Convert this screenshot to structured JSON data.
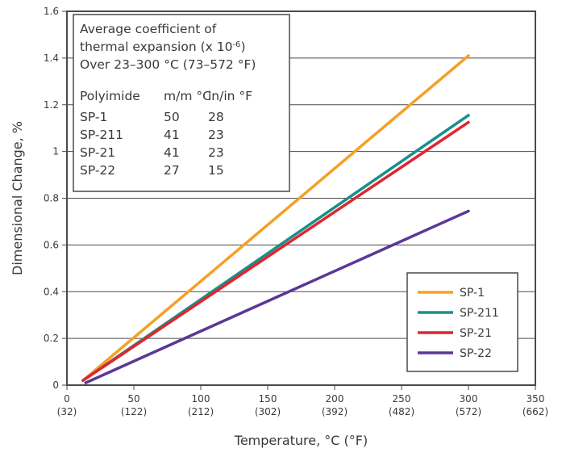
{
  "chart_data": {
    "type": "line",
    "xlabel": "Temperature, °C (°F)",
    "ylabel": "Dimensional Change, %",
    "xlim": [
      0,
      350
    ],
    "ylim": [
      0,
      1.6
    ],
    "x_ticks": [
      {
        "c": "0",
        "f": "(32)"
      },
      {
        "c": "50",
        "f": "(122)"
      },
      {
        "c": "100",
        "f": "(212)"
      },
      {
        "c": "150",
        "f": "(302)"
      },
      {
        "c": "200",
        "f": "(392)"
      },
      {
        "c": "250",
        "f": "(482)"
      },
      {
        "c": "300",
        "f": "(572)"
      },
      {
        "c": "350",
        "f": "(662)"
      }
    ],
    "y_ticks": [
      "0",
      "0.2",
      "0.4",
      "0.6",
      "0.8",
      "1",
      "1.2",
      "1.4",
      "1.6"
    ],
    "grid": "horizontal",
    "legend_position": "bottom-right",
    "series": [
      {
        "name": "SP-1",
        "color": "#f5a025",
        "x": [
          12,
          300
        ],
        "y": [
          0.02,
          1.41
        ]
      },
      {
        "name": "SP-211",
        "color": "#18908a",
        "x": [
          12,
          300
        ],
        "y": [
          0.02,
          1.155
        ]
      },
      {
        "name": "SP-21",
        "color": "#e0262c",
        "x": [
          12,
          300
        ],
        "y": [
          0.02,
          1.125
        ]
      },
      {
        "name": "SP-22",
        "color": "#5b3795",
        "x": [
          14,
          300
        ],
        "y": [
          0.01,
          0.745
        ]
      }
    ],
    "annotation": {
      "title_lines": [
        "Average coefficient of",
        "thermal expansion (x 10",
        "Over 23–300 °C (73–572 °F)"
      ],
      "exponent": "-6",
      "title_line2_suffix": ")",
      "table_header": [
        "Polyimide",
        "m/m °C",
        "in/in °F"
      ],
      "table_rows": [
        [
          "SP-1",
          "50",
          "28"
        ],
        [
          "SP-211",
          "41",
          "23"
        ],
        [
          "SP-21",
          "41",
          "23"
        ],
        [
          "SP-22",
          "27",
          "15"
        ]
      ]
    }
  }
}
